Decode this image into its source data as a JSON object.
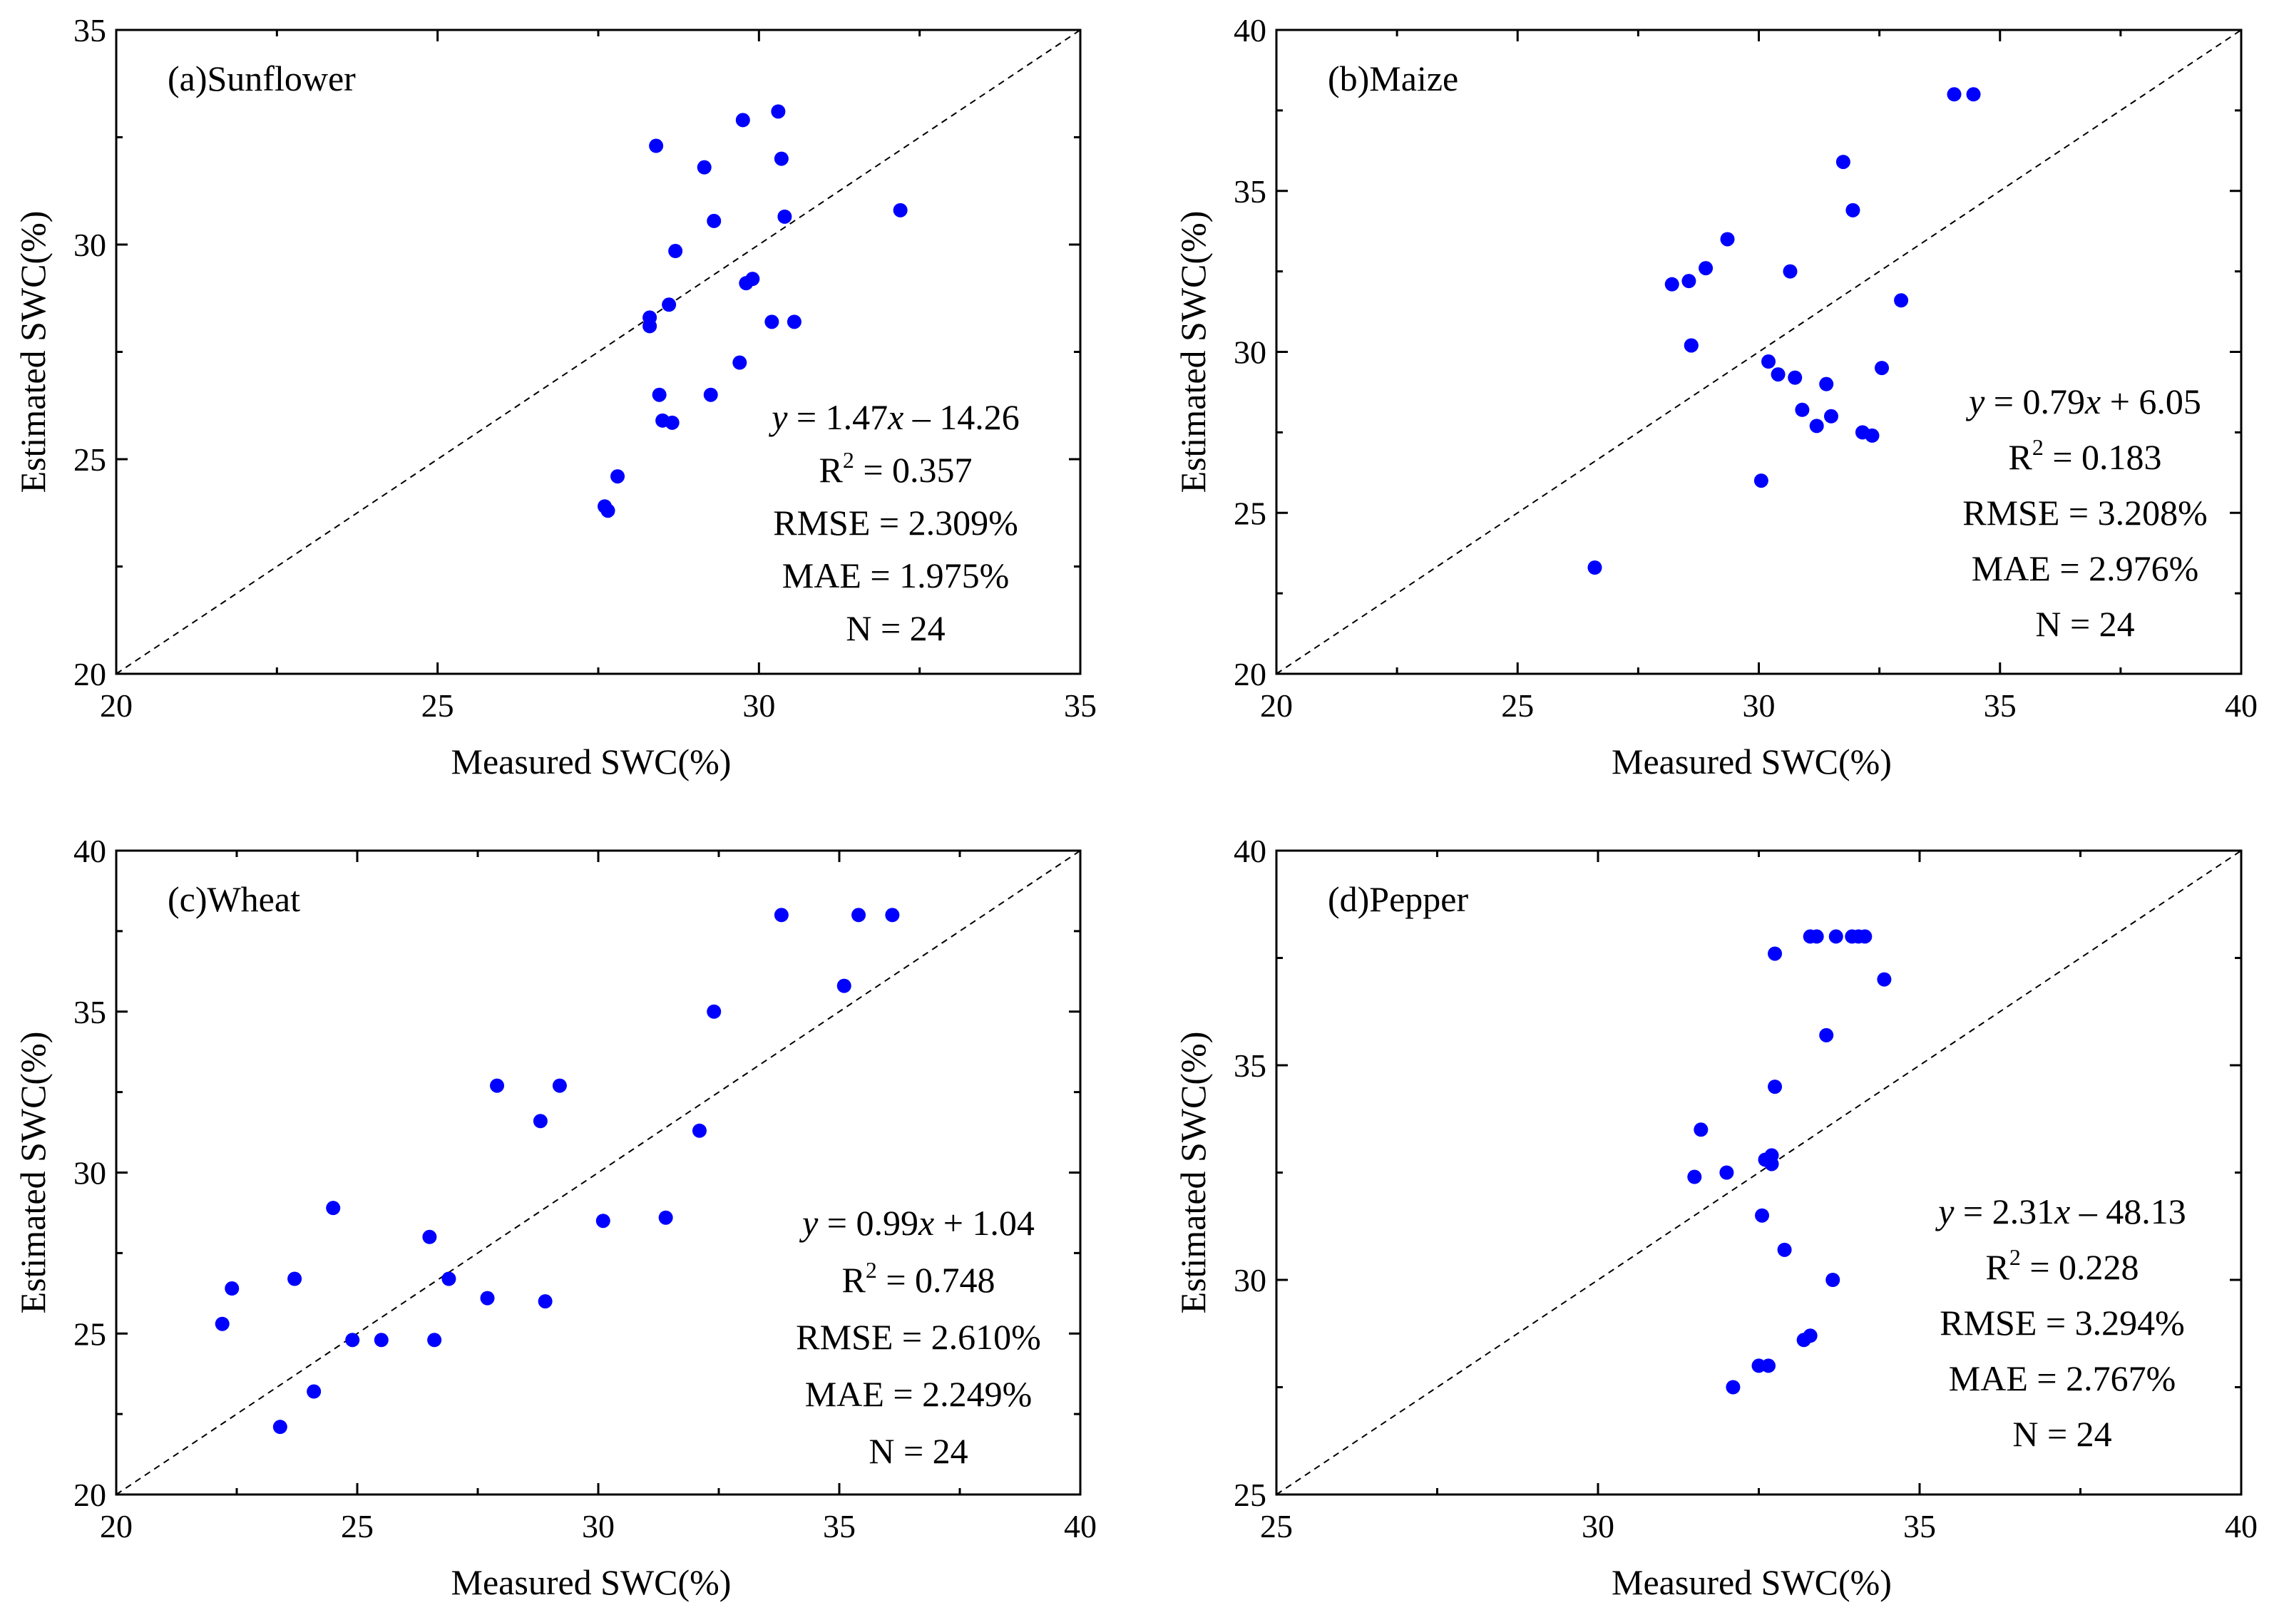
{
  "chart_data": [
    {
      "type": "scatter",
      "title": "(a)Sunflower",
      "xlabel": "Measured SWC(%)",
      "ylabel": "Estimated SWC(%)",
      "xlim": [
        20,
        35
      ],
      "ylim": [
        20,
        35
      ],
      "xticks": [
        20,
        25,
        30,
        35
      ],
      "yticks": [
        20,
        25,
        30,
        35
      ],
      "tick_labels_x": [
        "20",
        "25",
        "30",
        "35"
      ],
      "tick_labels_y": [
        "20",
        "25",
        "30",
        "35"
      ],
      "reference_line": "1:1",
      "annotations": {
        "equation": {
          "y": "y",
          "eq": " = 1.47",
          "x": "x",
          "rest": " – 14.26"
        },
        "r2": {
          "r": "R",
          "sup": "2",
          "rest": " = 0.357"
        },
        "rmse": "RMSE = 2.309%",
        "mae": "MAE = 1.975%",
        "n": "N = 24"
      },
      "series": [
        {
          "name": "Sunflower",
          "color": "#0000ff",
          "x": [
            27.6,
            27.65,
            27.8,
            28.3,
            28.3,
            28.4,
            28.45,
            28.5,
            28.65,
            28.6,
            28.7,
            29.15,
            29.25,
            29.3,
            29.7,
            29.75,
            29.8,
            29.9,
            30.2,
            30.3,
            30.35,
            30.4,
            30.55,
            32.2
          ],
          "y": [
            23.9,
            23.8,
            24.6,
            28.1,
            28.3,
            32.3,
            26.5,
            25.9,
            25.85,
            28.6,
            29.85,
            31.8,
            26.5,
            30.55,
            27.25,
            32.9,
            29.1,
            29.2,
            28.2,
            33.1,
            32.0,
            30.65,
            28.2,
            30.8
          ]
        }
      ]
    },
    {
      "type": "scatter",
      "title": "(b)Maize",
      "xlabel": "Measured SWC(%)",
      "ylabel": "Estimated SWC(%)",
      "xlim": [
        20,
        40
      ],
      "ylim": [
        20,
        40
      ],
      "xticks": [
        20,
        25,
        30,
        35,
        40
      ],
      "yticks": [
        20,
        25,
        30,
        35,
        40
      ],
      "tick_labels_x": [
        "20",
        "25",
        "30",
        "35",
        "40"
      ],
      "tick_labels_y": [
        "20",
        "25",
        "30",
        "35",
        "40"
      ],
      "reference_line": "1:1",
      "annotations": {
        "equation": {
          "y": "y",
          "eq": " = 0.79",
          "x": "x",
          "rest": " + 6.05"
        },
        "r2": {
          "r": "R",
          "sup": "2",
          "rest": " = 0.183"
        },
        "rmse": "RMSE = 3.208%",
        "mae": "MAE = 2.976%",
        "n": "N = 24"
      },
      "series": [
        {
          "name": "Maize",
          "color": "#0000ff",
          "x": [
            26.6,
            28.2,
            28.55,
            28.6,
            28.6,
            28.9,
            29.35,
            30.05,
            30.2,
            30.4,
            30.65,
            30.75,
            30.9,
            31.2,
            31.4,
            31.5,
            31.75,
            31.95,
            32.15,
            32.35,
            32.55,
            32.95,
            34.05,
            34.45
          ],
          "y": [
            23.3,
            32.1,
            32.2,
            30.2,
            30.2,
            32.6,
            33.5,
            26.0,
            29.7,
            29.3,
            32.5,
            29.2,
            28.2,
            27.7,
            29.0,
            28.0,
            35.9,
            34.4,
            27.5,
            27.4,
            29.5,
            31.6,
            38.0,
            38.0
          ]
        }
      ]
    },
    {
      "type": "scatter",
      "title": "(c)Wheat",
      "xlabel": "Measured SWC(%)",
      "ylabel": "Estimated SWC(%)",
      "xlim": [
        20,
        40
      ],
      "ylim": [
        20,
        40
      ],
      "xticks": [
        20,
        25,
        30,
        35,
        40
      ],
      "yticks": [
        20,
        25,
        30,
        35,
        40
      ],
      "tick_labels_x": [
        "20",
        "25",
        "30",
        "35",
        "40"
      ],
      "tick_labels_y": [
        "20",
        "25",
        "30",
        "35",
        "40"
      ],
      "reference_line": "1:1",
      "annotations": {
        "equation": {
          "y": "y",
          "eq": " = 0.99",
          "x": "x",
          "rest": " + 1.04"
        },
        "r2": {
          "r": "R",
          "sup": "2",
          "rest": " = 0.748"
        },
        "rmse": "RMSE = 2.610%",
        "mae": "MAE = 2.249%",
        "n": "N = 24"
      },
      "series": [
        {
          "name": "Wheat",
          "color": "#0000ff",
          "x": [
            22.2,
            22.4,
            23.4,
            23.7,
            24.1,
            24.5,
            24.9,
            25.5,
            26.5,
            26.6,
            26.9,
            27.7,
            27.9,
            28.8,
            28.9,
            29.2,
            30.1,
            31.4,
            32.1,
            32.4,
            33.8,
            35.1,
            35.4,
            36.1
          ],
          "y": [
            25.3,
            26.4,
            22.1,
            26.7,
            23.2,
            28.9,
            24.8,
            24.8,
            28.0,
            24.8,
            26.7,
            26.1,
            32.7,
            31.6,
            26.0,
            32.7,
            28.5,
            28.6,
            31.3,
            35.0,
            38.0,
            35.8,
            38.0,
            38.0
          ]
        }
      ]
    },
    {
      "type": "scatter",
      "title": "(d)Pepper",
      "xlabel": "Measured SWC(%)",
      "ylabel": "Estimated SWC(%)",
      "xlim": [
        25,
        40
      ],
      "ylim": [
        25,
        40
      ],
      "xticks": [
        25,
        30,
        35,
        40
      ],
      "yticks": [
        25,
        30,
        35,
        40
      ],
      "tick_labels_x": [
        "25",
        "30",
        "35",
        "40"
      ],
      "tick_labels_y": [
        "25",
        "30",
        "35",
        "40"
      ],
      "reference_line": "1:1",
      "annotations": {
        "equation": {
          "y": "y",
          "eq": " = 2.31",
          "x": "x",
          "rest": " – 48.13"
        },
        "r2": {
          "r": "R",
          "sup": "2",
          "rest": " = 0.228"
        },
        "rmse": "RMSE = 3.294%",
        "mae": "MAE = 2.767%",
        "n": "N = 24"
      },
      "series": [
        {
          "name": "Pepper",
          "color": "#0000ff",
          "x": [
            31.5,
            31.6,
            32.0,
            32.1,
            32.5,
            32.55,
            32.6,
            32.65,
            32.7,
            32.7,
            32.75,
            32.75,
            32.9,
            33.2,
            33.3,
            33.3,
            33.4,
            33.55,
            33.65,
            33.7,
            33.95,
            34.05,
            34.15,
            34.45
          ],
          "y": [
            32.4,
            33.5,
            32.5,
            27.5,
            28.0,
            31.5,
            32.8,
            28.0,
            32.9,
            32.7,
            37.6,
            34.5,
            30.7,
            28.6,
            38.0,
            28.7,
            38.0,
            35.7,
            30.0,
            38.0,
            38.0,
            38.0,
            38.0,
            37.0
          ]
        }
      ]
    }
  ]
}
